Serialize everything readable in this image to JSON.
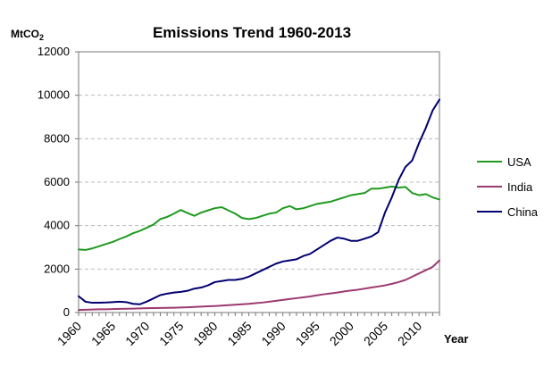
{
  "chart_data": {
    "type": "line",
    "title": "Emissions Trend 1960-2013",
    "ylabel_unit": "MtCO",
    "ylabel_unit_sub": "2",
    "xlabel": "Year",
    "xlim": [
      1960,
      2013
    ],
    "ylim": [
      0,
      12000
    ],
    "ytick_values": [
      0,
      2000,
      4000,
      6000,
      8000,
      10000,
      12000
    ],
    "ytick_labels": [
      "0",
      "2000",
      "4000",
      "6000",
      "8000",
      "10000",
      "12000"
    ],
    "xtick_values": [
      1960,
      1965,
      1970,
      1975,
      1980,
      1985,
      1990,
      1995,
      2000,
      2005,
      2010
    ],
    "xtick_labels": [
      "1960",
      "1965",
      "1970",
      "1975",
      "1980",
      "1985",
      "1990",
      "1995",
      "2000",
      "2005",
      "2010"
    ],
    "grid": "horizontal dashed",
    "legend_position": "right",
    "x": [
      1960,
      1961,
      1962,
      1963,
      1964,
      1965,
      1966,
      1967,
      1968,
      1969,
      1970,
      1971,
      1972,
      1973,
      1974,
      1975,
      1976,
      1977,
      1978,
      1979,
      1980,
      1981,
      1982,
      1983,
      1984,
      1985,
      1986,
      1987,
      1988,
      1989,
      1990,
      1991,
      1992,
      1993,
      1994,
      1995,
      1996,
      1997,
      1998,
      1999,
      2000,
      2001,
      2002,
      2003,
      2004,
      2005,
      2006,
      2007,
      2008,
      2009,
      2010,
      2011,
      2012,
      2013
    ],
    "series": [
      {
        "name": "USA",
        "color": "#1f9a1f",
        "values": [
          2900,
          2880,
          2950,
          3050,
          3150,
          3250,
          3380,
          3500,
          3650,
          3760,
          3900,
          4050,
          4300,
          4400,
          4550,
          4720,
          4580,
          4450,
          4600,
          4700,
          4800,
          4850,
          4700,
          4550,
          4350,
          4300,
          4350,
          4450,
          4550,
          4600,
          4800,
          4900,
          4750,
          4800,
          4900,
          5000,
          5050,
          5100,
          5200,
          5300,
          5400,
          5450,
          5500,
          5700,
          5700,
          5750,
          5800,
          5750,
          5780,
          5500,
          5400,
          5450,
          5300,
          5200
        ]
      },
      {
        "name": "India",
        "color": "#9c3a72",
        "values": [
          120,
          130,
          140,
          150,
          150,
          160,
          170,
          175,
          180,
          190,
          200,
          205,
          210,
          215,
          220,
          230,
          240,
          255,
          270,
          285,
          300,
          320,
          340,
          360,
          380,
          400,
          430,
          460,
          500,
          540,
          580,
          620,
          660,
          700,
          740,
          790,
          840,
          880,
          920,
          970,
          1010,
          1050,
          1100,
          1150,
          1200,
          1250,
          1320,
          1400,
          1500,
          1650,
          1800,
          1950,
          2100,
          2400
        ]
      },
      {
        "name": "China",
        "color": "#000070",
        "values": [
          750,
          500,
          450,
          450,
          460,
          480,
          500,
          480,
          400,
          380,
          500,
          650,
          800,
          870,
          920,
          950,
          1000,
          1100,
          1150,
          1250,
          1400,
          1450,
          1500,
          1500,
          1550,
          1650,
          1800,
          1950,
          2100,
          2250,
          2350,
          2400,
          2450,
          2600,
          2700,
          2900,
          3100,
          3300,
          3450,
          3400,
          3300,
          3300,
          3400,
          3500,
          3700,
          4600,
          5300,
          6100,
          6700,
          7000,
          7800,
          8500,
          9300,
          9800
        ]
      }
    ]
  }
}
